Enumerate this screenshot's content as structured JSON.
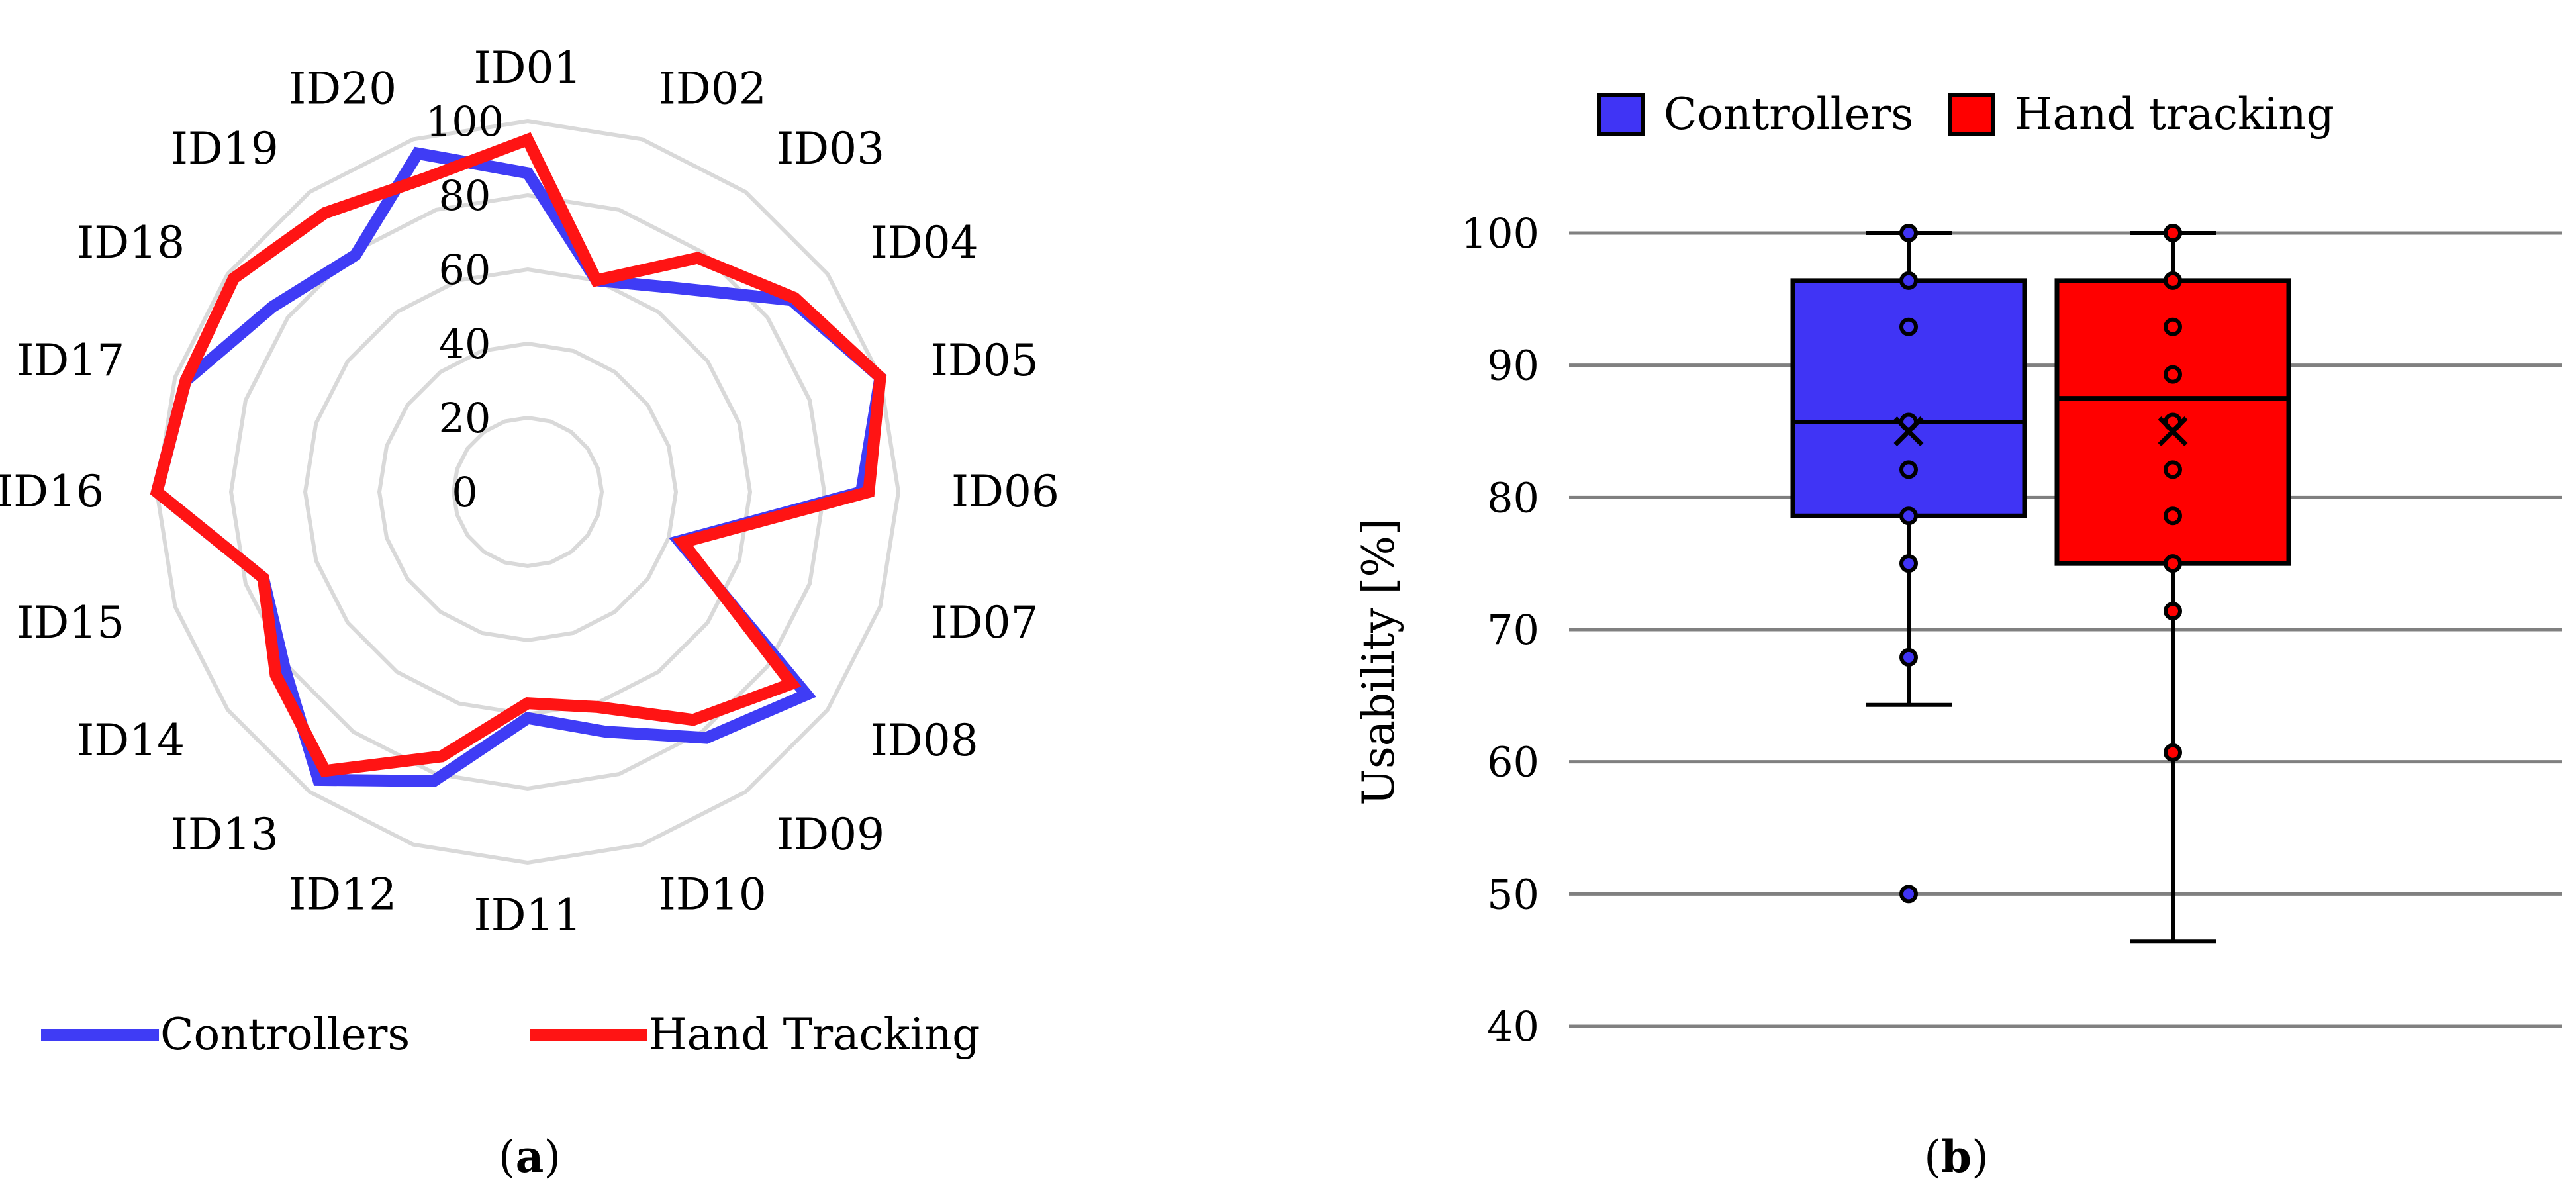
{
  "chart_data": [
    {
      "type": "radar",
      "categories": [
        "ID01",
        "ID02",
        "ID03",
        "ID04",
        "ID05",
        "ID06",
        "ID07",
        "ID08",
        "ID09",
        "ID10",
        "ID11",
        "ID12",
        "ID13",
        "ID14",
        "ID15",
        "ID16",
        "ID17",
        "ID18",
        "ID19",
        "ID20"
      ],
      "r_ticks": [
        "0",
        "20",
        "40",
        "60",
        "80",
        "100"
      ],
      "rlim": [
        0,
        100
      ],
      "series": [
        {
          "name": "Controllers",
          "color": "#3f3cf5",
          "values": [
            86,
            60,
            68,
            88,
            100,
            90,
            43,
            93,
            82,
            68,
            61,
            82,
            96,
            81,
            75,
            100,
            97,
            85,
            79,
            96
          ]
        },
        {
          "name": "Hand Tracking",
          "color": "#ff1414",
          "values": [
            95,
            60,
            78,
            89,
            100,
            92,
            44,
            88,
            76,
            61,
            57,
            75,
            93,
            84,
            75,
            100,
            97,
            98,
            93,
            89
          ]
        }
      ],
      "legend": "bottom",
      "panel_label": "(a)"
    },
    {
      "type": "box",
      "ylabel": "Usability [%]",
      "ylim": [
        40,
        100
      ],
      "yticks": [
        "40",
        "50",
        "60",
        "70",
        "80",
        "90",
        "100"
      ],
      "grid": true,
      "legend": "top",
      "boxes": [
        {
          "name": "Controllers",
          "color": "#4034f5",
          "min": 64.3,
          "q1": 78.6,
          "median": 85.7,
          "q3": 96.4,
          "max": 100,
          "mean": 85,
          "points": [
            100,
            96.4,
            92.9,
            85.7,
            82.1,
            78.6,
            75,
            67.9,
            50
          ]
        },
        {
          "name": "Hand tracking",
          "color": "#ff0000",
          "min": 46.4,
          "q1": 75,
          "median": 87.5,
          "q3": 96.4,
          "max": 100,
          "mean": 85,
          "points": [
            100,
            96.4,
            92.9,
            89.3,
            85.7,
            82.1,
            78.6,
            75,
            71.4,
            60.7
          ]
        }
      ],
      "panel_label": "(b)"
    }
  ]
}
